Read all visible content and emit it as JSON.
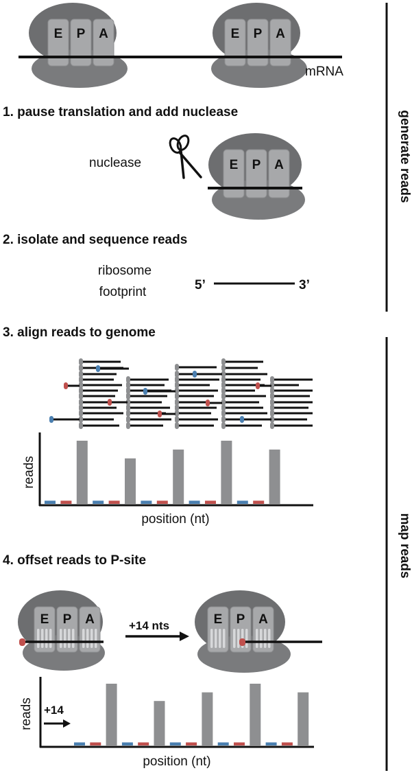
{
  "sites": [
    "E",
    "P",
    "A"
  ],
  "labels": {
    "mrna": "mRNA",
    "nuclease": "nuclease",
    "footprint_line1": "ribosome",
    "footprint_line2": "footprint",
    "five_prime": "5’",
    "three_prime": "3’",
    "offset": "+14 nts",
    "offset_small": "+14"
  },
  "steps": {
    "s1": "1. pause translation and add nuclease",
    "s2": "2. isolate and sequence reads",
    "s3": "3. align reads to genome",
    "s4": "4. offset reads to P-site"
  },
  "sections": {
    "generate": "generate reads",
    "map": "map reads"
  },
  "chart_data": [
    {
      "type": "bar",
      "xlabel": "position (nt)",
      "ylabel": "reads",
      "series": [
        {
          "values": [
            0.05,
            0.05,
            1.0,
            0.05,
            0.05,
            0.72,
            0.05,
            0.05,
            0.86,
            0.05,
            0.05,
            1.0,
            0.05,
            0.05,
            0.86
          ]
        }
      ],
      "colors": {
        "frame0": "#4a7fb0",
        "frame1": "#c0504d",
        "frame2": "#8e8f91"
      }
    },
    {
      "type": "bar",
      "xlabel": "position (nt)",
      "ylabel": "reads",
      "series": [
        {
          "values": [
            0.05,
            0.05,
            1.0,
            0.05,
            0.05,
            0.72,
            0.05,
            0.05,
            0.86,
            0.05,
            0.05,
            1.0,
            0.05,
            0.05,
            0.86
          ]
        }
      ],
      "colors": {
        "frame0": "#4a7fb0",
        "frame1": "#c0504d",
        "frame2": "#8e8f91"
      }
    }
  ]
}
